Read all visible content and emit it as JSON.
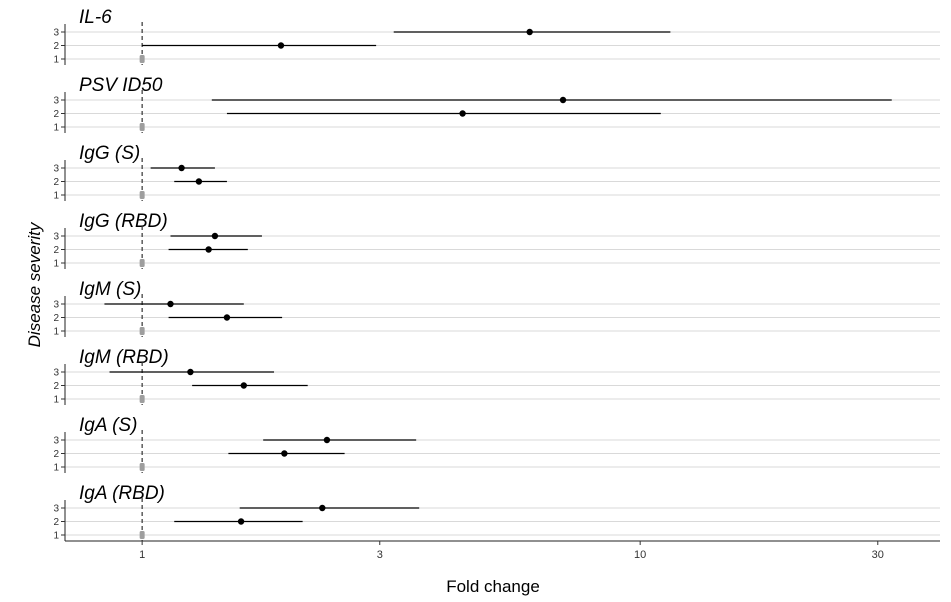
{
  "chart_data": {
    "type": "forest",
    "xlabel": "Fold change",
    "ylabel": "Disease severity",
    "x_scale": "log",
    "xlim": [
      0.7,
      40
    ],
    "x_ticks": [
      1,
      3,
      10,
      30
    ],
    "reference_line": 1,
    "levels": [
      "1",
      "2",
      "3"
    ],
    "colors": {
      "point": "#000000",
      "interval": "#000000",
      "reference": "#9e9e9e",
      "grid": "#d9d9d9"
    },
    "panels": [
      {
        "title": "IL-6",
        "rows": [
          {
            "level": "1",
            "estimate": 1,
            "lower": 1,
            "upper": 1
          },
          {
            "level": "2",
            "estimate": 1.9,
            "lower": 1.0,
            "upper": 2.95
          },
          {
            "level": "3",
            "estimate": 6.0,
            "lower": 3.2,
            "upper": 11.5
          }
        ]
      },
      {
        "title": "PSV ID50",
        "rows": [
          {
            "level": "1",
            "estimate": 1,
            "lower": 1,
            "upper": 1
          },
          {
            "level": "2",
            "estimate": 4.4,
            "lower": 1.48,
            "upper": 11.0
          },
          {
            "level": "3",
            "estimate": 7.0,
            "lower": 1.38,
            "upper": 32.0
          }
        ]
      },
      {
        "title": "IgG (S)",
        "rows": [
          {
            "level": "1",
            "estimate": 1,
            "lower": 1,
            "upper": 1
          },
          {
            "level": "2",
            "estimate": 1.3,
            "lower": 1.16,
            "upper": 1.48
          },
          {
            "level": "3",
            "estimate": 1.2,
            "lower": 1.04,
            "upper": 1.4
          }
        ]
      },
      {
        "title": "IgG (RBD)",
        "rows": [
          {
            "level": "1",
            "estimate": 1,
            "lower": 1,
            "upper": 1
          },
          {
            "level": "2",
            "estimate": 1.36,
            "lower": 1.13,
            "upper": 1.63
          },
          {
            "level": "3",
            "estimate": 1.4,
            "lower": 1.14,
            "upper": 1.74
          }
        ]
      },
      {
        "title": "IgM (S)",
        "rows": [
          {
            "level": "1",
            "estimate": 1,
            "lower": 1,
            "upper": 1
          },
          {
            "level": "2",
            "estimate": 1.48,
            "lower": 1.13,
            "upper": 1.91
          },
          {
            "level": "3",
            "estimate": 1.14,
            "lower": 0.84,
            "upper": 1.6
          }
        ]
      },
      {
        "title": "IgM (RBD)",
        "rows": [
          {
            "level": "1",
            "estimate": 1,
            "lower": 1,
            "upper": 1
          },
          {
            "level": "2",
            "estimate": 1.6,
            "lower": 1.26,
            "upper": 2.15
          },
          {
            "level": "3",
            "estimate": 1.25,
            "lower": 0.86,
            "upper": 1.84
          }
        ]
      },
      {
        "title": "IgA (S)",
        "rows": [
          {
            "level": "1",
            "estimate": 1,
            "lower": 1,
            "upper": 1
          },
          {
            "level": "2",
            "estimate": 1.93,
            "lower": 1.49,
            "upper": 2.55
          },
          {
            "level": "3",
            "estimate": 2.35,
            "lower": 1.75,
            "upper": 3.55
          }
        ]
      },
      {
        "title": "IgA (RBD)",
        "rows": [
          {
            "level": "1",
            "estimate": 1,
            "lower": 1,
            "upper": 1
          },
          {
            "level": "2",
            "estimate": 1.58,
            "lower": 1.16,
            "upper": 2.1
          },
          {
            "level": "3",
            "estimate": 2.3,
            "lower": 1.57,
            "upper": 3.6
          }
        ]
      }
    ]
  }
}
